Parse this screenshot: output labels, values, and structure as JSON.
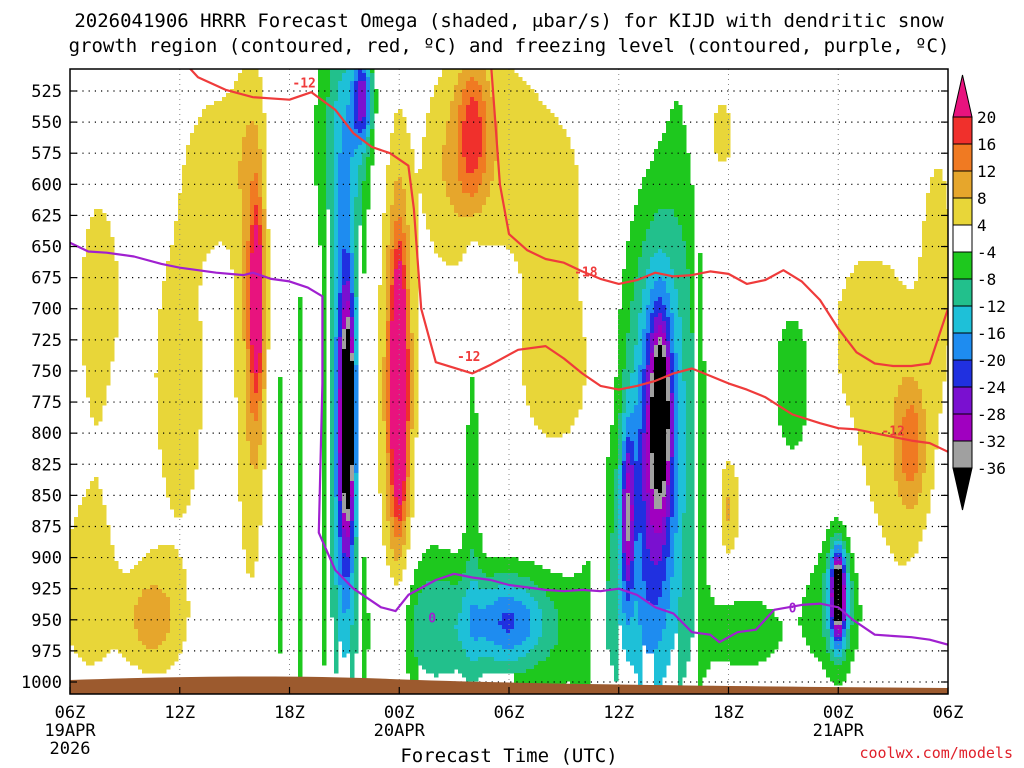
{
  "title": {
    "line1": "2026041906 HRRR Forecast Omega (shaded, μbar/s) for KIJD with dendritic snow",
    "line2": "growth region (contoured, red, ºC) and freezing level (contoured, purple, ºC)"
  },
  "credit": "coolwx.com/models",
  "chart_data": {
    "type": "heatmap",
    "xlabel": "Forecast Time (UTC)",
    "ylabel": "",
    "x_ticks": [
      {
        "hour": 0,
        "label": "06Z",
        "sub": [
          "19APR",
          "2026"
        ]
      },
      {
        "hour": 6,
        "label": "12Z",
        "sub": []
      },
      {
        "hour": 12,
        "label": "18Z",
        "sub": []
      },
      {
        "hour": 18,
        "label": "00Z",
        "sub": [
          "20APR"
        ]
      },
      {
        "hour": 24,
        "label": "06Z",
        "sub": []
      },
      {
        "hour": 30,
        "label": "12Z",
        "sub": []
      },
      {
        "hour": 36,
        "label": "18Z",
        "sub": []
      },
      {
        "hour": 42,
        "label": "00Z",
        "sub": [
          "21APR"
        ]
      },
      {
        "hour": 48,
        "label": "06Z",
        "sub": []
      }
    ],
    "xlim": [
      0,
      48
    ],
    "y_ticks": [
      525,
      550,
      575,
      600,
      625,
      650,
      675,
      700,
      725,
      750,
      775,
      800,
      825,
      850,
      875,
      900,
      925,
      950,
      975,
      1000
    ],
    "ylim": [
      510,
      1012
    ],
    "colorbar": {
      "ticks": [
        20,
        16,
        12,
        8,
        4,
        -4,
        -8,
        -12,
        -16,
        -20,
        -24,
        -28,
        -32,
        -36
      ],
      "levels": [
        {
          "from": 20,
          "to": 24,
          "color": "#e8137e"
        },
        {
          "from": 16,
          "to": 20,
          "color": "#f0302c"
        },
        {
          "from": 12,
          "to": 16,
          "color": "#f07a22"
        },
        {
          "from": 8,
          "to": 12,
          "color": "#e6a62c"
        },
        {
          "from": 4,
          "to": 8,
          "color": "#e8d639"
        },
        {
          "from": -4,
          "to": 4,
          "color": "#ffffff"
        },
        {
          "from": -8,
          "to": -4,
          "color": "#1ec81e"
        },
        {
          "from": -12,
          "to": -8,
          "color": "#22c08c"
        },
        {
          "from": -16,
          "to": -12,
          "color": "#1ec0d8"
        },
        {
          "from": -20,
          "to": -16,
          "color": "#1e8cf0"
        },
        {
          "from": -24,
          "to": -20,
          "color": "#2030e0"
        },
        {
          "from": -28,
          "to": -24,
          "color": "#7a10d0"
        },
        {
          "from": -32,
          "to": -28,
          "color": "#a000c0"
        },
        {
          "from": -36,
          "to": -32,
          "color": "#a0a0a0"
        },
        {
          "from": -40,
          "to": -36,
          "color": "#000000"
        }
      ]
    },
    "omega_features": [
      {
        "t": 1.5,
        "p": 700,
        "dt": 1.8,
        "dp": 160,
        "v": 5
      },
      {
        "t": 1.0,
        "p": 930,
        "dt": 2.0,
        "dp": 80,
        "v": 6
      },
      {
        "t": 4.5,
        "p": 950,
        "dt": 1.5,
        "dp": 40,
        "v": 9
      },
      {
        "t": 3.0,
        "p": 820,
        "dt": 0.7,
        "dp": 60,
        "v": -6
      },
      {
        "t": 6.0,
        "p": 760,
        "dt": 2.5,
        "dp": 220,
        "v": 5
      },
      {
        "t": 8.5,
        "p": 580,
        "dt": 2.0,
        "dp": 70,
        "v": 5
      },
      {
        "t": 10.0,
        "p": 720,
        "dt": 1.0,
        "dp": 260,
        "v": 7
      },
      {
        "t": 10.2,
        "p": 700,
        "dt": 0.5,
        "dp": 100,
        "v": 13
      },
      {
        "t": 10.2,
        "p": 690,
        "dt": 0.25,
        "dp": 50,
        "v": 18
      },
      {
        "t": 12.0,
        "p": 820,
        "dt": 1.2,
        "dp": 360,
        "v": -6
      },
      {
        "t": 13.1,
        "p": 800,
        "dt": 0.4,
        "dp": 130,
        "v": 5
      },
      {
        "t": 15.0,
        "p": 760,
        "dt": 1.3,
        "dp": 420,
        "v": -8
      },
      {
        "t": 15.0,
        "p": 790,
        "dt": 0.6,
        "dp": 160,
        "v": -18
      },
      {
        "t": 15.2,
        "p": 790,
        "dt": 0.35,
        "dp": 90,
        "v": -28
      },
      {
        "t": 15.3,
        "p": 780,
        "dt": 0.15,
        "dp": 30,
        "v": -38
      },
      {
        "t": 15.2,
        "p": 560,
        "dt": 1.5,
        "dp": 80,
        "v": -8
      },
      {
        "t": 16.0,
        "p": 530,
        "dt": 0.5,
        "dp": 35,
        "v": -20
      },
      {
        "t": 17.5,
        "p": 760,
        "dt": 1.2,
        "dp": 260,
        "v": 5
      },
      {
        "t": 18.0,
        "p": 770,
        "dt": 0.8,
        "dp": 170,
        "v": 9
      },
      {
        "t": 18.0,
        "p": 760,
        "dt": 0.5,
        "dp": 110,
        "v": 16
      },
      {
        "t": 18.0,
        "p": 760,
        "dt": 0.3,
        "dp": 70,
        "v": 21
      },
      {
        "t": 20.5,
        "p": 600,
        "dt": 1.5,
        "dp": 90,
        "v": 5
      },
      {
        "t": 22.5,
        "p": 560,
        "dt": 2.5,
        "dp": 80,
        "v": 6
      },
      {
        "t": 22.0,
        "p": 560,
        "dt": 0.8,
        "dp": 60,
        "v": 12
      },
      {
        "t": 27.0,
        "p": 620,
        "dt": 4.0,
        "dp": 140,
        "v": 5
      },
      {
        "t": 27.5,
        "p": 770,
        "dt": 3.5,
        "dp": 80,
        "v": 5
      },
      {
        "t": 19.5,
        "p": 950,
        "dt": 2.0,
        "dp": 70,
        "v": -6
      },
      {
        "t": 23.0,
        "p": 960,
        "dt": 6.0,
        "dp": 55,
        "v": -8
      },
      {
        "t": 24.0,
        "p": 950,
        "dt": 2.0,
        "dp": 35,
        "v": -13
      },
      {
        "t": 22.0,
        "p": 830,
        "dt": 0.5,
        "dp": 170,
        "v": -6
      },
      {
        "t": 31.0,
        "p": 860,
        "dt": 3.0,
        "dp": 260,
        "v": -7
      },
      {
        "t": 31.5,
        "p": 850,
        "dt": 1.5,
        "dp": 200,
        "v": -13
      },
      {
        "t": 32.2,
        "p": 790,
        "dt": 0.8,
        "dp": 110,
        "v": -19
      },
      {
        "t": 32.3,
        "p": 780,
        "dt": 0.4,
        "dp": 50,
        "v": -24
      },
      {
        "t": 30.5,
        "p": 870,
        "dt": 0.35,
        "dp": 70,
        "v": -21
      },
      {
        "t": 33.5,
        "p": 760,
        "dt": 1.2,
        "dp": 290,
        "v": -7
      },
      {
        "t": 30.7,
        "p": 920,
        "dt": 0.5,
        "dp": 80,
        "v": 4
      },
      {
        "t": 36.0,
        "p": 860,
        "dt": 0.6,
        "dp": 45,
        "v": 9
      },
      {
        "t": 37.0,
        "p": 960,
        "dt": 2.5,
        "dp": 40,
        "v": -6
      },
      {
        "t": 42.0,
        "p": 940,
        "dt": 2.0,
        "dp": 60,
        "v": -8
      },
      {
        "t": 42.0,
        "p": 930,
        "dt": 0.6,
        "dp": 45,
        "v": -18
      },
      {
        "t": 42.0,
        "p": 930,
        "dt": 0.3,
        "dp": 30,
        "v": -29
      },
      {
        "t": 39.5,
        "p": 760,
        "dt": 1.2,
        "dp": 70,
        "v": -7
      },
      {
        "t": 35.5,
        "p": 560,
        "dt": 1.5,
        "dp": 60,
        "v": 5
      },
      {
        "t": 45.0,
        "p": 800,
        "dt": 2.5,
        "dp": 180,
        "v": 6
      },
      {
        "t": 46.0,
        "p": 810,
        "dt": 0.8,
        "dp": 50,
        "v": 10
      },
      {
        "t": 47.5,
        "p": 660,
        "dt": 1.0,
        "dp": 120,
        "v": 5
      },
      {
        "t": 43.0,
        "p": 720,
        "dt": 1.5,
        "dp": 60,
        "v": 5
      }
    ],
    "contours": [
      {
        "name": "freezing level",
        "color": "#a020d0",
        "label": "0",
        "label_points": [
          {
            "t": 19.8,
            "p": 948
          },
          {
            "t": 39.5,
            "p": 940
          }
        ],
        "x": [
          0,
          1,
          2,
          3.5,
          5,
          6,
          8,
          9.5,
          10,
          11,
          12,
          13,
          13.8,
          13.8,
          13.6,
          14.5,
          15.5,
          17,
          17.8,
          18.5,
          20,
          21,
          22,
          23,
          24,
          25,
          26,
          27,
          28,
          29,
          30,
          31,
          32,
          33,
          34,
          35,
          35.5,
          36.5,
          37.5,
          38.5,
          40,
          41,
          42,
          42.8,
          44,
          45,
          46,
          47,
          48
        ],
        "y": [
          647,
          654,
          655,
          658,
          664,
          667,
          671,
          673,
          671,
          676,
          678,
          683,
          690,
          760,
          880,
          910,
          925,
          940,
          943,
          930,
          918,
          913,
          916,
          918,
          922,
          924,
          926,
          927,
          926,
          927,
          925,
          930,
          940,
          945,
          960,
          962,
          968,
          960,
          958,
          942,
          938,
          937,
          940,
          950,
          962,
          963,
          964,
          966,
          970
        ]
      },
      {
        "name": "-12 isotherm",
        "color": "#ef3b3b",
        "label": "-12",
        "label_points": [
          {
            "t": 12.8,
            "p": 518
          },
          {
            "t": 21.8,
            "p": 738
          },
          {
            "t": 45.0,
            "p": 798
          }
        ],
        "x": [
          6,
          7,
          8.5,
          10,
          12,
          13.2,
          14.5,
          15.5,
          16.5,
          17.5,
          18.5,
          18.8,
          19.2,
          20,
          22,
          23,
          24.5,
          26,
          27,
          28,
          29,
          30,
          31,
          32,
          33,
          34,
          35,
          36,
          37,
          38,
          39.5,
          41,
          42,
          43,
          44,
          45,
          46,
          47,
          48
        ],
        "y": [
          498,
          514,
          524,
          530,
          532,
          526,
          540,
          559,
          570,
          575,
          585,
          620,
          700,
          743,
          752,
          745,
          733,
          730,
          740,
          752,
          762,
          765,
          762,
          758,
          752,
          748,
          754,
          760,
          765,
          771,
          785,
          792,
          796,
          797,
          800,
          803,
          806,
          808,
          815
        ]
      },
      {
        "name": "-18 isotherm",
        "color": "#ef3b3b",
        "label": "-18",
        "label_points": [
          {
            "t": 28.2,
            "p": 670
          }
        ],
        "x": [
          23,
          23.2,
          23.5,
          24,
          25,
          26,
          27,
          28,
          29,
          30,
          31,
          32,
          33,
          34,
          35,
          36,
          37,
          38,
          39,
          40,
          41,
          42,
          43,
          44,
          45,
          46,
          47,
          48
        ],
        "y": [
          500,
          540,
          600,
          640,
          653,
          660,
          663,
          670,
          676,
          680,
          677,
          671,
          674,
          673,
          670,
          672,
          680,
          677,
          669,
          678,
          693,
          716,
          735,
          744,
          746,
          746,
          744,
          700
        ]
      }
    ]
  }
}
